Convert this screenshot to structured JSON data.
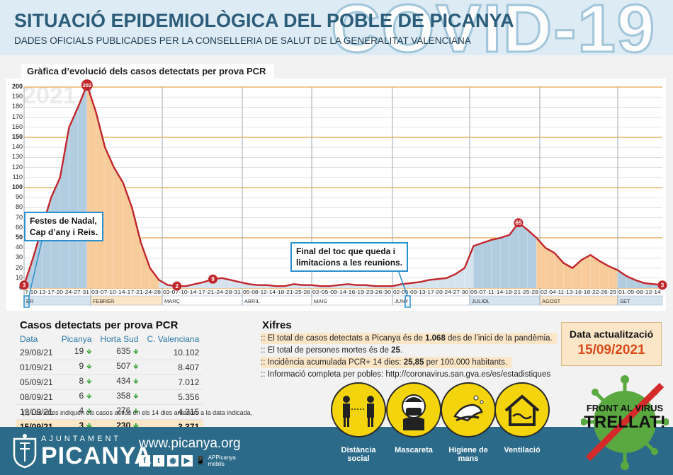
{
  "header": {
    "title": "SITUACIÓ EPIDEMIOLÒGICA DEL POBLE DE PICANYA",
    "subtitle": "DADES OFICIALS PUBLICADES PER LA CONSELLERIA DE SALUT DE LA GENERALITAT VALENCIANA",
    "watermark": "COVID-19"
  },
  "chart": {
    "tab_title": "Gràfica d’evolució dels casos detectats per prova PCR",
    "year_watermark": "2021",
    "callout_1": [
      "Festes de Nadal,",
      "Cap d’any i Reis."
    ],
    "callout_2": [
      "Final del toc que queda i",
      "limitacions a les reunions."
    ]
  },
  "chart_data": {
    "type": "area",
    "title": "Gràfica d’evolució dels casos detectats per prova PCR",
    "ylim": [
      0,
      200
    ],
    "yticks": [
      0,
      10,
      20,
      30,
      40,
      50,
      60,
      70,
      80,
      90,
      100,
      110,
      120,
      130,
      140,
      150,
      160,
      170,
      180,
      190,
      200
    ],
    "months": [
      "GENER",
      "FEBRER",
      "MARÇ",
      "ABRIL",
      "MAIG",
      "JUNY",
      "JULIOL",
      "AGOST",
      "SET"
    ],
    "month_labels": [
      "ER",
      "FEBRER",
      "MARÇ",
      "ABRIL",
      "MAIG",
      "JUNY",
      "JULIOL",
      "AGOST",
      "SET"
    ],
    "tick_groups": [
      "7-10-13-17-20-24-27-31",
      "03-07-10-14-17-21-24-28",
      "03-07-10-14-17-21-24-28-31",
      "05-08-12-14-18-21-25-28",
      "02-05-09-14-16-19-23-26-30",
      "02-06-09-13-17-20-24-27-30",
      "05-07-11-14-18-21-25-28",
      "02-04-11-13-16-18-22-26-29",
      "01-05-08-12-14"
    ],
    "series": [
      {
        "values": [
          3,
          30,
          60,
          90,
          110,
          160,
          180,
          202,
          175,
          140,
          120,
          105,
          80,
          45,
          20,
          8,
          3,
          2,
          2,
          4,
          6,
          9,
          10,
          8,
          6,
          4,
          3,
          3,
          2,
          2,
          4,
          3,
          3,
          2,
          2,
          3,
          4,
          3,
          3,
          2,
          2,
          2,
          4,
          5,
          6,
          8,
          9,
          10,
          14,
          20,
          42,
          45,
          48,
          50,
          53,
          65,
          58,
          50,
          40,
          35,
          25,
          20,
          28,
          33,
          27,
          22,
          18,
          12,
          8,
          5,
          4,
          3
        ]
      }
    ],
    "annotations": [
      {
        "label": "3",
        "value": 3
      },
      {
        "label": "202",
        "value": 202
      },
      {
        "label": "2",
        "value": 2
      },
      {
        "label": "9",
        "value": 9
      },
      {
        "label": "65",
        "value": 65
      },
      {
        "label": "3",
        "value": 3
      }
    ]
  },
  "cases": {
    "title": "Casos detectats per prova PCR",
    "headers": [
      "Data",
      "Picanya",
      "Horta Sud",
      "C. Valenciana"
    ],
    "rows": [
      [
        "29/08/21",
        "19",
        "635",
        "10.102"
      ],
      [
        "01/09/21",
        "9",
        "507",
        "8.407"
      ],
      [
        "05/09/21",
        "8",
        "434",
        "7.012"
      ],
      [
        "08/09/21",
        "6",
        "358",
        "5.356"
      ],
      [
        "12/09/21",
        "4",
        "276",
        "4.315"
      ],
      [
        "15/09/21",
        "3",
        "230",
        "3.371"
      ]
    ],
    "footnote": "(*) Les xifres indiquen els casos actius en els 14 dies anteriors a la data indicada."
  },
  "xifres": {
    "title": "Xifres",
    "line1_pre": ":: El total de casos detectats a Picanya és de ",
    "line1_bold": "1.068",
    "line1_post": " des de l’inici de la pandèmia.",
    "line2_pre": ":: El total de persones mortes és de ",
    "line2_bold": "25",
    "line2_post": ".",
    "line3_pre": ":: Incidència acumulada PCR+ 14 dies: ",
    "line3_bold": "25,85",
    "line3_post": " per 100.000 habitants.",
    "line4": ":: Informació completa per pobles: http://coronavirus.san.gva.es/es/estadistiques"
  },
  "update": {
    "label": "Data actualització",
    "date": "15/09/2021"
  },
  "footer": {
    "ajuntament": "AJUNTAMENT",
    "town": "PICANYA",
    "website": "www.picanya.org",
    "app_label": "APPicanya mòbils",
    "measures": [
      "Distància social",
      "Mascareta",
      "Higiene de mans",
      "Ventilació"
    ],
    "campaign_line1": "FRONT AL VIRUS",
    "campaign_line2": "TRELLAT!"
  },
  "colors": {
    "line": "#c0262b",
    "area_blue": "#a9c6dc",
    "area_orange": "#f7cc9a",
    "footer": "#2b6b89",
    "accent_orange": "#d94a1a"
  }
}
